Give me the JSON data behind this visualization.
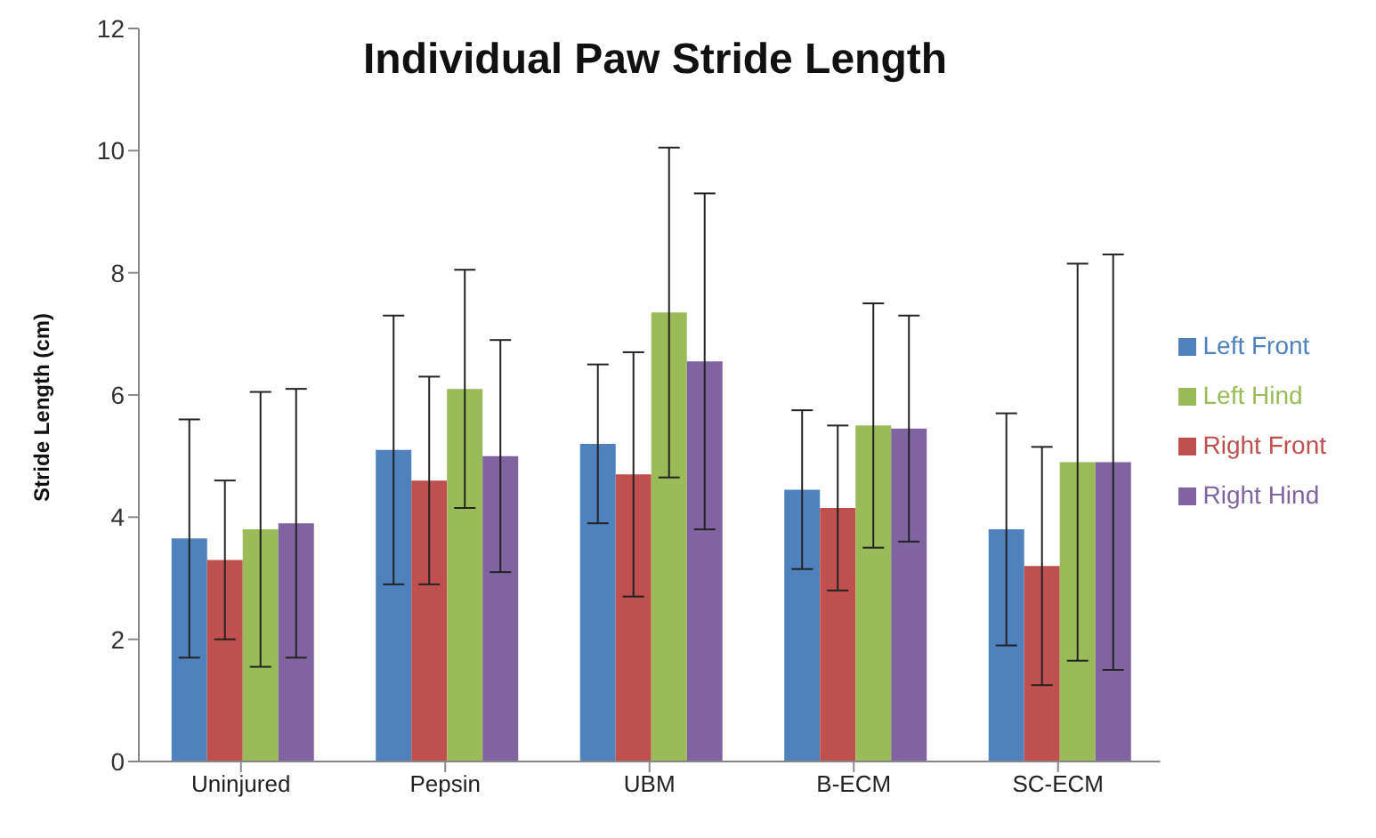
{
  "chart_data": {
    "type": "bar",
    "title": "Individual Paw Stride Length",
    "ylabel": "Stride Length (cm)",
    "categories": [
      "Uninjured",
      "Pepsin",
      "UBM",
      "B-ECM",
      "SC-ECM"
    ],
    "series": [
      {
        "name": "Left Front",
        "color": "#4f81bd",
        "values": [
          3.65,
          5.1,
          5.2,
          4.45,
          3.8
        ],
        "errors": [
          1.95,
          2.2,
          1.3,
          1.3,
          1.9
        ]
      },
      {
        "name": "Right Front",
        "color": "#c0504d",
        "values": [
          3.3,
          4.6,
          4.7,
          4.15,
          3.2
        ],
        "errors": [
          1.3,
          1.7,
          2.0,
          1.35,
          1.95
        ]
      },
      {
        "name": "Left Hind",
        "color": "#9bbb59",
        "values": [
          3.8,
          6.1,
          7.35,
          5.5,
          4.9
        ],
        "errors": [
          2.25,
          1.95,
          2.7,
          2.0,
          3.25
        ]
      },
      {
        "name": "Right Hind",
        "color": "#8064a2",
        "values": [
          3.9,
          5.0,
          6.55,
          5.45,
          4.9
        ],
        "errors": [
          2.2,
          1.9,
          2.75,
          1.85,
          3.4
        ]
      }
    ],
    "ylim": [
      0,
      12
    ],
    "yticks": [
      0,
      2,
      4,
      6,
      8,
      10,
      12
    ],
    "grid": false,
    "legend": "right"
  }
}
